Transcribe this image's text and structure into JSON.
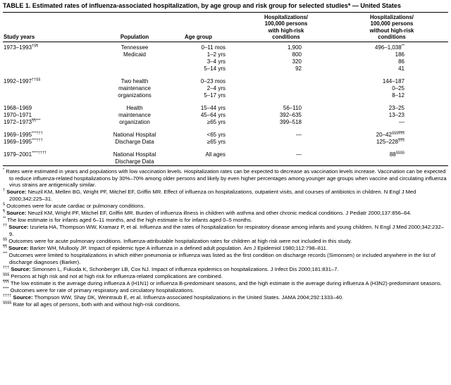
{
  "page": {
    "title": "TABLE 1. Estimated rates of influenza-associated hospitalization, by age group and risk group for selected studies* — United States"
  },
  "table": {
    "header": {
      "study_years": "Study years",
      "population": "Population",
      "age_group": "Age group",
      "with_risk": "Hospitalizations/\n100,000 persons\nwith high-risk\nconditions",
      "without_risk": "Hospitalizations/\n100,000 persons\nwithout high-risk\nconditions"
    },
    "groups": [
      {
        "rows": [
          [
            "1973–1993†§¶",
            "Tennessee",
            "0–11 mos",
            "1,900",
            "496–1,038**"
          ],
          [
            "",
            "Medicaid",
            "1–2 yrs",
            "800",
            "186"
          ],
          [
            "",
            "",
            "3–4 yrs",
            "320",
            "86"
          ],
          [
            "",
            "",
            "5–14 yrs",
            "92",
            "41"
          ]
        ]
      },
      {
        "rows": [
          [
            "1992–1997††§§",
            "Two health",
            "0–23 mos",
            "",
            "144–187"
          ],
          [
            "",
            "maintenance",
            "2–4 yrs",
            "",
            "0–25"
          ],
          [
            "",
            "organizations",
            "5–17 yrs",
            "",
            "8–12"
          ]
        ]
      },
      {
        "rows": [
          [
            "1968–1969",
            "Health",
            "15–44 yrs",
            "56–110",
            "23–25"
          ],
          [
            "1970–1971",
            "maintenance",
            "45–64 yrs",
            "392–635",
            "13–23"
          ],
          [
            "1972–1973¶¶***",
            "organization",
            "≥65 yrs",
            "399–518",
            "—"
          ]
        ]
      },
      {
        "rows": [
          [
            "1969–1995***†††",
            "National Hospital",
            "<65 yrs",
            "—",
            "20–42§§§¶¶¶"
          ],
          [
            "1969–1995***†††",
            "Discharge Data",
            "≥65 yrs",
            "",
            "125–228¶¶¶"
          ]
        ]
      },
      {
        "rows": [
          [
            "1979–2001****††††",
            "National Hospital",
            "All ages",
            "—",
            "88§§§§"
          ],
          [
            "",
            "Discharge Data",
            "",
            "",
            ""
          ]
        ]
      }
    ]
  },
  "footnotes": [
    {
      "marker": "*",
      "text": "Rates were estimated in years and populations with low vaccination levels. Hospitalization rates can be expected to decrease as vaccination levels increase. Vaccination can be expected to reduce influenza-related hospitalizations by 30%–70% among older persons and likely by even higher percentages among younger age groups when vaccine and circulating influenza virus strains are antigenically similar."
    },
    {
      "marker": "†",
      "text": "Source: Neuzil KM, Mellen BG, Wright PF, Mitchel EF, Griffin MR. Effect of influenza on hospitalizations, outpatient visits, and courses of antibiotics in children. N Engl J Med 2000;342:225–31."
    },
    {
      "marker": "§",
      "text": "Outcomes were for acute cardiac or pulmonary conditions."
    },
    {
      "marker": "¶",
      "text": "Source: Neuzil KM, Wright PF, Mitchel EF, Griffin MR. Burden of influenza illness in children with asthma and other chronic medical conditions. J Pediatr 2000;137:856–64."
    },
    {
      "marker": "**",
      "text": "The low estimate is for infants aged 6–11 months, and the high estimate is for infants aged 0–5 months."
    },
    {
      "marker": "††",
      "text": "Source: Izurieta HA, Thompson WW, Kramarz P, et al. Influenza and the rates of hospitalization for respiratory disease among infants and young children. N Engl J Med 2000;342:232–9."
    },
    {
      "marker": "§§",
      "text": "Outcomes were for acute pulmonary conditions. Influenza-attributable hospitalization rates for children at high risk were not included in this study."
    },
    {
      "marker": "¶¶",
      "text": "Source: Barker WH, Mullooly JP. Impact of epidemic type A influenza in a defined adult population. Am J Epidemiol 1980;112:798–811."
    },
    {
      "marker": "***",
      "text": "Outcomes were limited to hospitalizations in which either pneumonia or influenza was listed as the first condition on discharge records (Simonsen) or included anywhere in the list of discharge diagnoses (Barker)."
    },
    {
      "marker": "†††",
      "text": "Source: Simonsen L, Fukuda K, Schonberger LB, Cox NJ. Impact of influenza epidemics on hospitalizations. J Infect Dis 2000;181:831–7."
    },
    {
      "marker": "§§§",
      "text": "Persons at high risk and not at high risk for influenza-related complications are combined."
    },
    {
      "marker": "¶¶¶",
      "text": "The low estimate is the average during influenza A (H1N1) or influenza B-predominant seasons, and the high estimate is the average during influenza A (H3N2)-predominant seasons."
    },
    {
      "marker": "****",
      "text": "Outcomes were for rate of primary respiratory and circulatory hospitalizations."
    },
    {
      "marker": "††††",
      "text": "Source: Thompson WW, Shay DK, Weintraub E, et al. Influenza-associated hospitalizations in the United States. JAMA 2004;292:1333–40."
    },
    {
      "marker": "§§§§",
      "text": "Rate for all ages of persons, both with and without high-risk conditions."
    }
  ]
}
